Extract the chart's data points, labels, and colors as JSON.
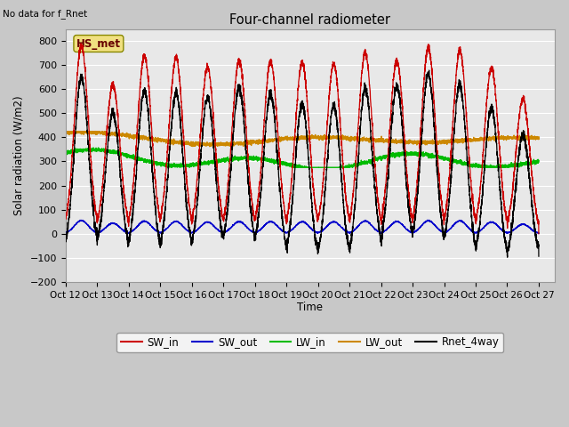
{
  "title": "Four-channel radiometer",
  "top_left_text": "No data for f_Rnet",
  "station_label": "HS_met",
  "ylabel": "Solar radiation (W/m2)",
  "xlabel": "Time",
  "xlim": [
    0,
    15.5
  ],
  "ylim": [
    -200,
    850
  ],
  "yticks": [
    -200,
    -100,
    0,
    100,
    200,
    300,
    400,
    500,
    600,
    700,
    800
  ],
  "xtick_labels": [
    "Oct 12",
    "Oct 13",
    "Oct 14",
    "Oct 15",
    "Oct 16",
    "Oct 17",
    "Oct 18",
    "Oct 19",
    "Oct 20",
    "Oct 21",
    "Oct 22",
    "Oct 23",
    "Oct 24",
    "Oct 25",
    "Oct 26",
    "Oct 27"
  ],
  "colors": {
    "SW_in": "#cc0000",
    "SW_out": "#0000cc",
    "LW_in": "#00bb00",
    "LW_out": "#cc8800",
    "Rnet_4way": "#000000"
  },
  "legend_labels": [
    "SW_in",
    "SW_out",
    "LW_in",
    "LW_out",
    "Rnet_4way"
  ],
  "figsize": [
    6.4,
    4.8
  ],
  "dpi": 100
}
